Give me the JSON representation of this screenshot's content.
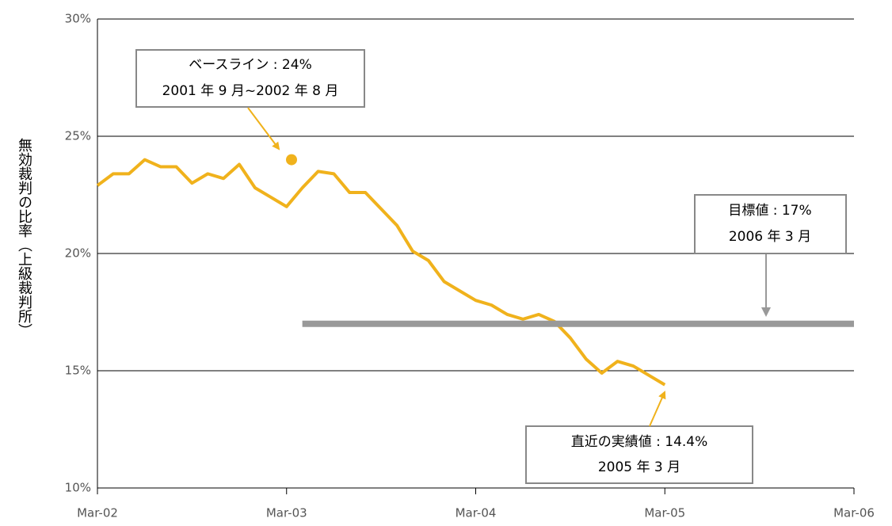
{
  "chart_data": {
    "type": "line",
    "y_axis_label": "無効裁判の比率（上級裁判所）",
    "categories": [
      "Mar-02",
      null,
      null,
      null,
      null,
      null,
      null,
      null,
      null,
      null,
      null,
      null,
      "Mar-03",
      null,
      null,
      null,
      null,
      null,
      null,
      null,
      null,
      null,
      null,
      null,
      "Mar-04",
      null,
      null,
      null,
      null,
      null,
      null,
      null,
      null,
      null,
      null,
      null,
      "Mar-05",
      null,
      null,
      null,
      null,
      null,
      null,
      null,
      null,
      null,
      null,
      null,
      "Mar-06"
    ],
    "series": [
      {
        "color": "#f0b21c",
        "values": [
          22.9,
          23.4,
          23.4,
          24.0,
          23.7,
          23.7,
          23.0,
          23.4,
          23.2,
          23.8,
          22.8,
          22.4,
          22.0,
          22.8,
          23.5,
          23.4,
          22.6,
          22.6,
          21.9,
          21.2,
          20.1,
          19.7,
          18.8,
          18.4,
          18.0,
          17.8,
          17.4,
          17.2,
          17.4,
          17.1,
          16.4,
          15.5,
          14.9,
          15.4,
          15.2,
          14.8,
          14.4,
          null,
          null,
          null,
          null,
          null,
          null,
          null,
          null,
          null,
          null,
          null,
          null
        ]
      },
      {
        "color": "#999999",
        "values": [
          null,
          null,
          null,
          null,
          null,
          null,
          null,
          null,
          null,
          null,
          null,
          null,
          null,
          17,
          17,
          17,
          17,
          17,
          17,
          17,
          17,
          17,
          17,
          17,
          17,
          17,
          17,
          17,
          17,
          17,
          17,
          17,
          17,
          17,
          17,
          17,
          17,
          17,
          17,
          17,
          17,
          17,
          17,
          17,
          17,
          17,
          17,
          17,
          17
        ]
      }
    ],
    "baseline": {
      "value": 24,
      "color": "#f0b21c",
      "label": "ベースライン : 24%",
      "period": "2001 年 9 月~2002 年 8 月"
    },
    "target_note": {
      "label": "目標値 : 17%",
      "period": "2006 年 3 月"
    },
    "latest_note": {
      "label": "直近の実績値 : 14.4%",
      "period": "2005 年 3 月"
    },
    "ylim": [
      10,
      30
    ],
    "yticks": [
      {
        "value": 10,
        "label": "10%"
      },
      {
        "value": 15,
        "label": "15%"
      },
      {
        "value": 20,
        "label": "20%"
      },
      {
        "value": 25,
        "label": "25%"
      },
      {
        "value": 30,
        "label": "30%"
      }
    ],
    "grid": true
  }
}
